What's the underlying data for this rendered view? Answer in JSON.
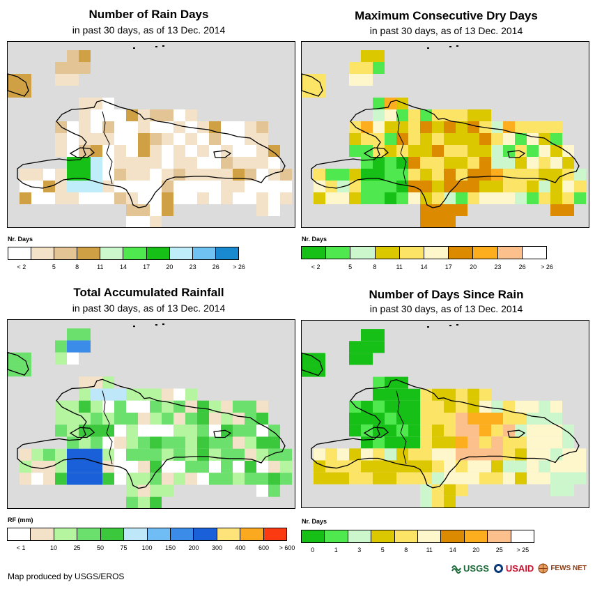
{
  "panels": [
    {
      "title": "Number of Rain Days",
      "subtitle": "in past 30 days, as of 13 Dec. 2014",
      "legend_title": "Nr. Days",
      "legend_colors": [
        "#ffffff",
        "#f3e2c7",
        "#e2c495",
        "#cfa044",
        "#ccf7cc",
        "#4fe94f",
        "#16c016",
        "#bfeefa",
        "#6fc2f2",
        "#1a8ad0"
      ],
      "legend_labels": [
        "< 2",
        "5",
        "8",
        "11",
        "14",
        "17",
        "20",
        "23",
        "26",
        "> 26"
      ],
      "palette": "rain"
    },
    {
      "title": "Maximum Consecutive Dry Days",
      "subtitle": "in past 30 days, as of 13 Dec. 2014",
      "legend_title": "Nr. Days",
      "legend_colors": [
        "#16c016",
        "#4fe94f",
        "#ccf7cc",
        "#dcc800",
        "#fce566",
        "#fff7cc",
        "#dc8a00",
        "#fcae1e",
        "#fcc08c",
        "#ffffff"
      ],
      "legend_labels": [
        "< 2",
        "5",
        "8",
        "11",
        "14",
        "17",
        "20",
        "23",
        "26",
        "> 26"
      ],
      "palette": "dry"
    },
    {
      "title": "Total Accumulated Rainfall",
      "subtitle": "in past 30 days, as of 13 Dec. 2014",
      "legend_title": "RF (mm)",
      "legend_colors": [
        "#ffffff",
        "#f3e2c7",
        "#b5f5a0",
        "#6ce06c",
        "#3cc83c",
        "#bfe7fa",
        "#6fbdf4",
        "#3a8ce8",
        "#1a60d8",
        "#fde37a",
        "#fba91e",
        "#fc3a12"
      ],
      "legend_labels": [
        "< 1",
        "10",
        "25",
        "50",
        "75",
        "100",
        "150",
        "200",
        "300",
        "400",
        "600",
        "> 600"
      ],
      "palette": "rf"
    },
    {
      "title": "Number of Days Since Rain",
      "subtitle": "in past 30 days, as of 13 Dec. 2014",
      "legend_title": "Nr. Days",
      "legend_colors": [
        "#16c016",
        "#4fe94f",
        "#ccf7cc",
        "#dcc800",
        "#fce566",
        "#fff7cc",
        "#dc8a00",
        "#fcae1e",
        "#fcc08c",
        "#ffffff"
      ],
      "legend_labels": [
        "0",
        "1",
        "3",
        "5",
        "8",
        "11",
        "14",
        "20",
        "25",
        "> 25"
      ],
      "palette": "since"
    }
  ],
  "footer": "Map produced by USGS/EROS",
  "logos": {
    "usgs": "USGS",
    "usaid": "USAID",
    "fews": "FEWS NET"
  }
}
